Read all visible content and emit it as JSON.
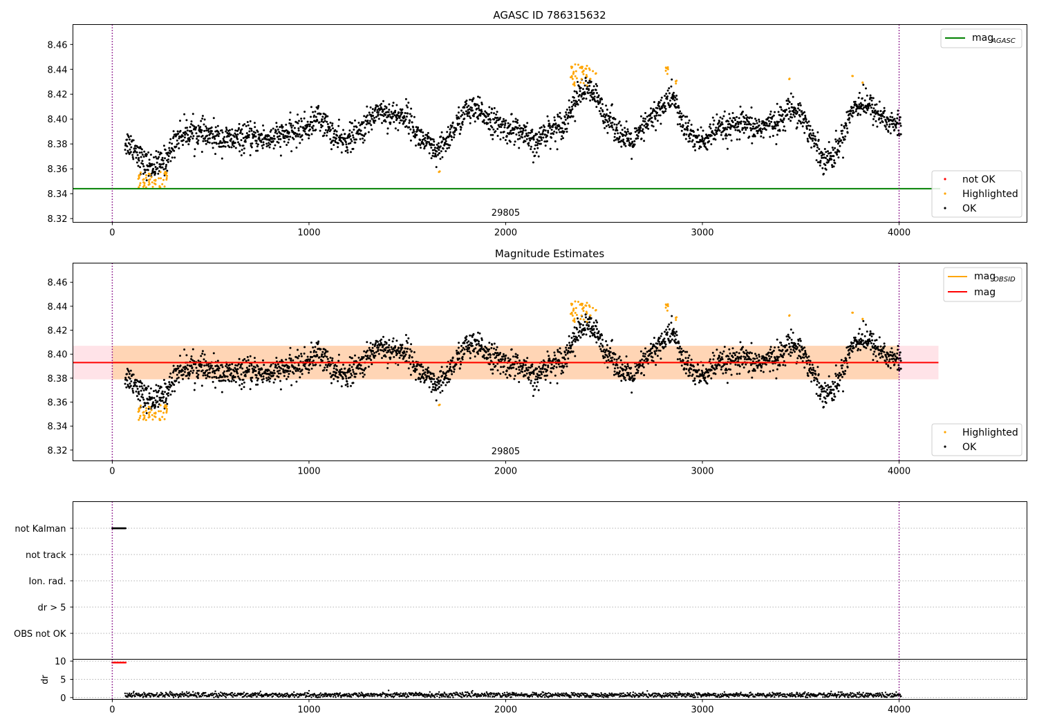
{
  "colors": {
    "ok": "#000000",
    "highlighted": "#ffa500",
    "not_ok": "#ff0000",
    "mag_agasc": "#008000",
    "mag_obsid": "#ffa500",
    "mag": "#ff0000",
    "band_outer": "#ffc0cb",
    "band_inner": "#ffa500",
    "obs_boundary": "#800080",
    "grid": "#b0b0b0"
  },
  "chart_data": [
    {
      "type": "scatter",
      "title": "AGASC ID 786315632",
      "xlim": [
        -200,
        4650
      ],
      "ylim": [
        8.317,
        8.476
      ],
      "xticks": [
        0,
        1000,
        2000,
        3000,
        4000
      ],
      "xtick_labels": [
        "0",
        "1000",
        "2000",
        "3000",
        "4000"
      ],
      "yticks": [
        8.32,
        8.34,
        8.36,
        8.38,
        8.4,
        8.42,
        8.44,
        8.46
      ],
      "ytick_labels": [
        "8.32",
        "8.34",
        "8.36",
        "8.38",
        "8.40",
        "8.42",
        "8.44",
        "8.46"
      ],
      "obs_boundaries": [
        0,
        4000
      ],
      "obsid_label": "29805",
      "obsid_label_x": 2000,
      "mag_agasc": 8.344,
      "legend_top": {
        "placement": "upper-right",
        "entries": [
          {
            "main": "mag",
            "sub": "AGASC"
          }
        ]
      },
      "legend_bottom": {
        "placement": "lower-right",
        "entries": [
          "not OK",
          "Highlighted",
          "OK"
        ]
      },
      "series": [
        {
          "name": "OK",
          "profile_x": [
            80,
            120,
            160,
            200,
            240,
            280,
            330,
            400,
            500,
            600,
            700,
            800,
            900,
            1000,
            1050,
            1100,
            1150,
            1200,
            1250,
            1300,
            1350,
            1400,
            1450,
            1500,
            1550,
            1600,
            1650,
            1700,
            1750,
            1800,
            1850,
            1900,
            1950,
            2000,
            2050,
            2100,
            2150,
            2200,
            2250,
            2300,
            2350,
            2400,
            2450,
            2500,
            2550,
            2600,
            2650,
            2700,
            2750,
            2800,
            2850,
            2900,
            2950,
            3000,
            3050,
            3100,
            3150,
            3200,
            3250,
            3300,
            3350,
            3400,
            3450,
            3500,
            3550,
            3600,
            3650,
            3700,
            3750,
            3800,
            3850,
            3900,
            3950,
            4000
          ],
          "profile_y": [
            8.381,
            8.376,
            8.364,
            8.362,
            8.363,
            8.369,
            8.386,
            8.39,
            8.386,
            8.383,
            8.385,
            8.384,
            8.388,
            8.394,
            8.402,
            8.392,
            8.382,
            8.384,
            8.388,
            8.397,
            8.408,
            8.404,
            8.402,
            8.403,
            8.387,
            8.38,
            8.371,
            8.383,
            8.395,
            8.407,
            8.406,
            8.403,
            8.396,
            8.392,
            8.392,
            8.386,
            8.378,
            8.39,
            8.393,
            8.397,
            8.414,
            8.424,
            8.42,
            8.405,
            8.396,
            8.384,
            8.381,
            8.393,
            8.402,
            8.411,
            8.419,
            8.395,
            8.386,
            8.381,
            8.389,
            8.392,
            8.393,
            8.396,
            8.392,
            8.394,
            8.396,
            8.4,
            8.409,
            8.405,
            8.388,
            8.371,
            8.368,
            8.38,
            8.405,
            8.414,
            8.41,
            8.404,
            8.397,
            8.395
          ],
          "scatter_sd": 0.0055,
          "n_points": 2600
        },
        {
          "name": "Highlighted",
          "groups": [
            {
              "x": [
                130,
                280
              ],
              "y": [
                8.345,
                8.358
              ]
            },
            {
              "x": [
                2330,
                2460
              ],
              "y": [
                8.426,
                8.444
              ]
            },
            {
              "x": [
                2810,
                2830
              ],
              "y": [
                8.432,
                8.442
              ]
            },
            {
              "x": [
                2860,
                2870
              ],
              "y": [
                8.428,
                8.432
              ]
            },
            {
              "x": [
                3440,
                3445
              ],
              "y": [
                8.432,
                8.433
              ]
            },
            {
              "x": [
                3760,
                3765
              ],
              "y": [
                8.434,
                8.435
              ]
            },
            {
              "x": [
                3810,
                3815
              ],
              "y": [
                8.429,
                8.43
              ]
            },
            {
              "x": [
                1660,
                1665
              ],
              "y": [
                8.357,
                8.358
              ]
            }
          ]
        },
        {
          "name": "not OK",
          "points": []
        }
      ]
    },
    {
      "type": "scatter",
      "title": "Magnitude Estimates",
      "xlim": [
        -200,
        4650
      ],
      "ylim": [
        8.311,
        8.476
      ],
      "xticks": [
        0,
        1000,
        2000,
        3000,
        4000
      ],
      "xtick_labels": [
        "0",
        "1000",
        "2000",
        "3000",
        "4000"
      ],
      "yticks": [
        8.32,
        8.34,
        8.36,
        8.38,
        8.4,
        8.42,
        8.44,
        8.46
      ],
      "ytick_labels": [
        "8.32",
        "8.34",
        "8.36",
        "8.38",
        "8.40",
        "8.42",
        "8.44",
        "8.46"
      ],
      "obs_boundaries": [
        0,
        4000
      ],
      "obsid_label": "29805",
      "obsid_label_x": 2000,
      "mag": 8.393,
      "mag_obsid": 8.393,
      "band_outer": {
        "x": [
          -200,
          4200
        ],
        "y": [
          8.379,
          8.407
        ]
      },
      "band_inner": {
        "x": [
          0,
          4000
        ],
        "y": [
          8.379,
          8.407
        ]
      },
      "legend_top": {
        "placement": "upper-right",
        "entries": [
          {
            "main": "mag",
            "sub": "OBSID"
          },
          {
            "main": "mag",
            "sub": ""
          }
        ]
      },
      "legend_bottom": {
        "placement": "lower-right",
        "entries": [
          "Highlighted",
          "OK"
        ]
      }
    },
    {
      "type": "scatter",
      "xlim": [
        -200,
        4650
      ],
      "categories": [
        "not Kalman",
        "not track",
        "Ion. rad.",
        "dr > 5",
        "OBS not OK"
      ],
      "flag_runs": [
        {
          "category": "not Kalman",
          "x": [
            0,
            70
          ]
        }
      ],
      "obs_boundaries": [
        0,
        4000
      ],
      "xticks": [
        0,
        1000,
        2000,
        3000,
        4000
      ],
      "xtick_labels": [
        "0",
        "1000",
        "2000",
        "3000",
        "4000"
      ]
    },
    {
      "type": "scatter",
      "xlim": [
        -200,
        4650
      ],
      "ylim": [
        -0.5,
        10.5
      ],
      "ylabel": "dr",
      "yticks": [
        0,
        5,
        10
      ],
      "ytick_labels": [
        "0",
        "5",
        "10"
      ],
      "clipped_run": {
        "x": [
          0,
          70
        ],
        "y": 9.6
      },
      "dr_series": {
        "x_start": 65,
        "x_end": 4010,
        "mean": 0.7,
        "sd": 0.35
      },
      "obs_boundaries": [
        0,
        4000
      ],
      "xticks": [
        0,
        1000,
        2000,
        3000,
        4000
      ],
      "xtick_labels": [
        "0",
        "1000",
        "2000",
        "3000",
        "4000"
      ]
    }
  ]
}
